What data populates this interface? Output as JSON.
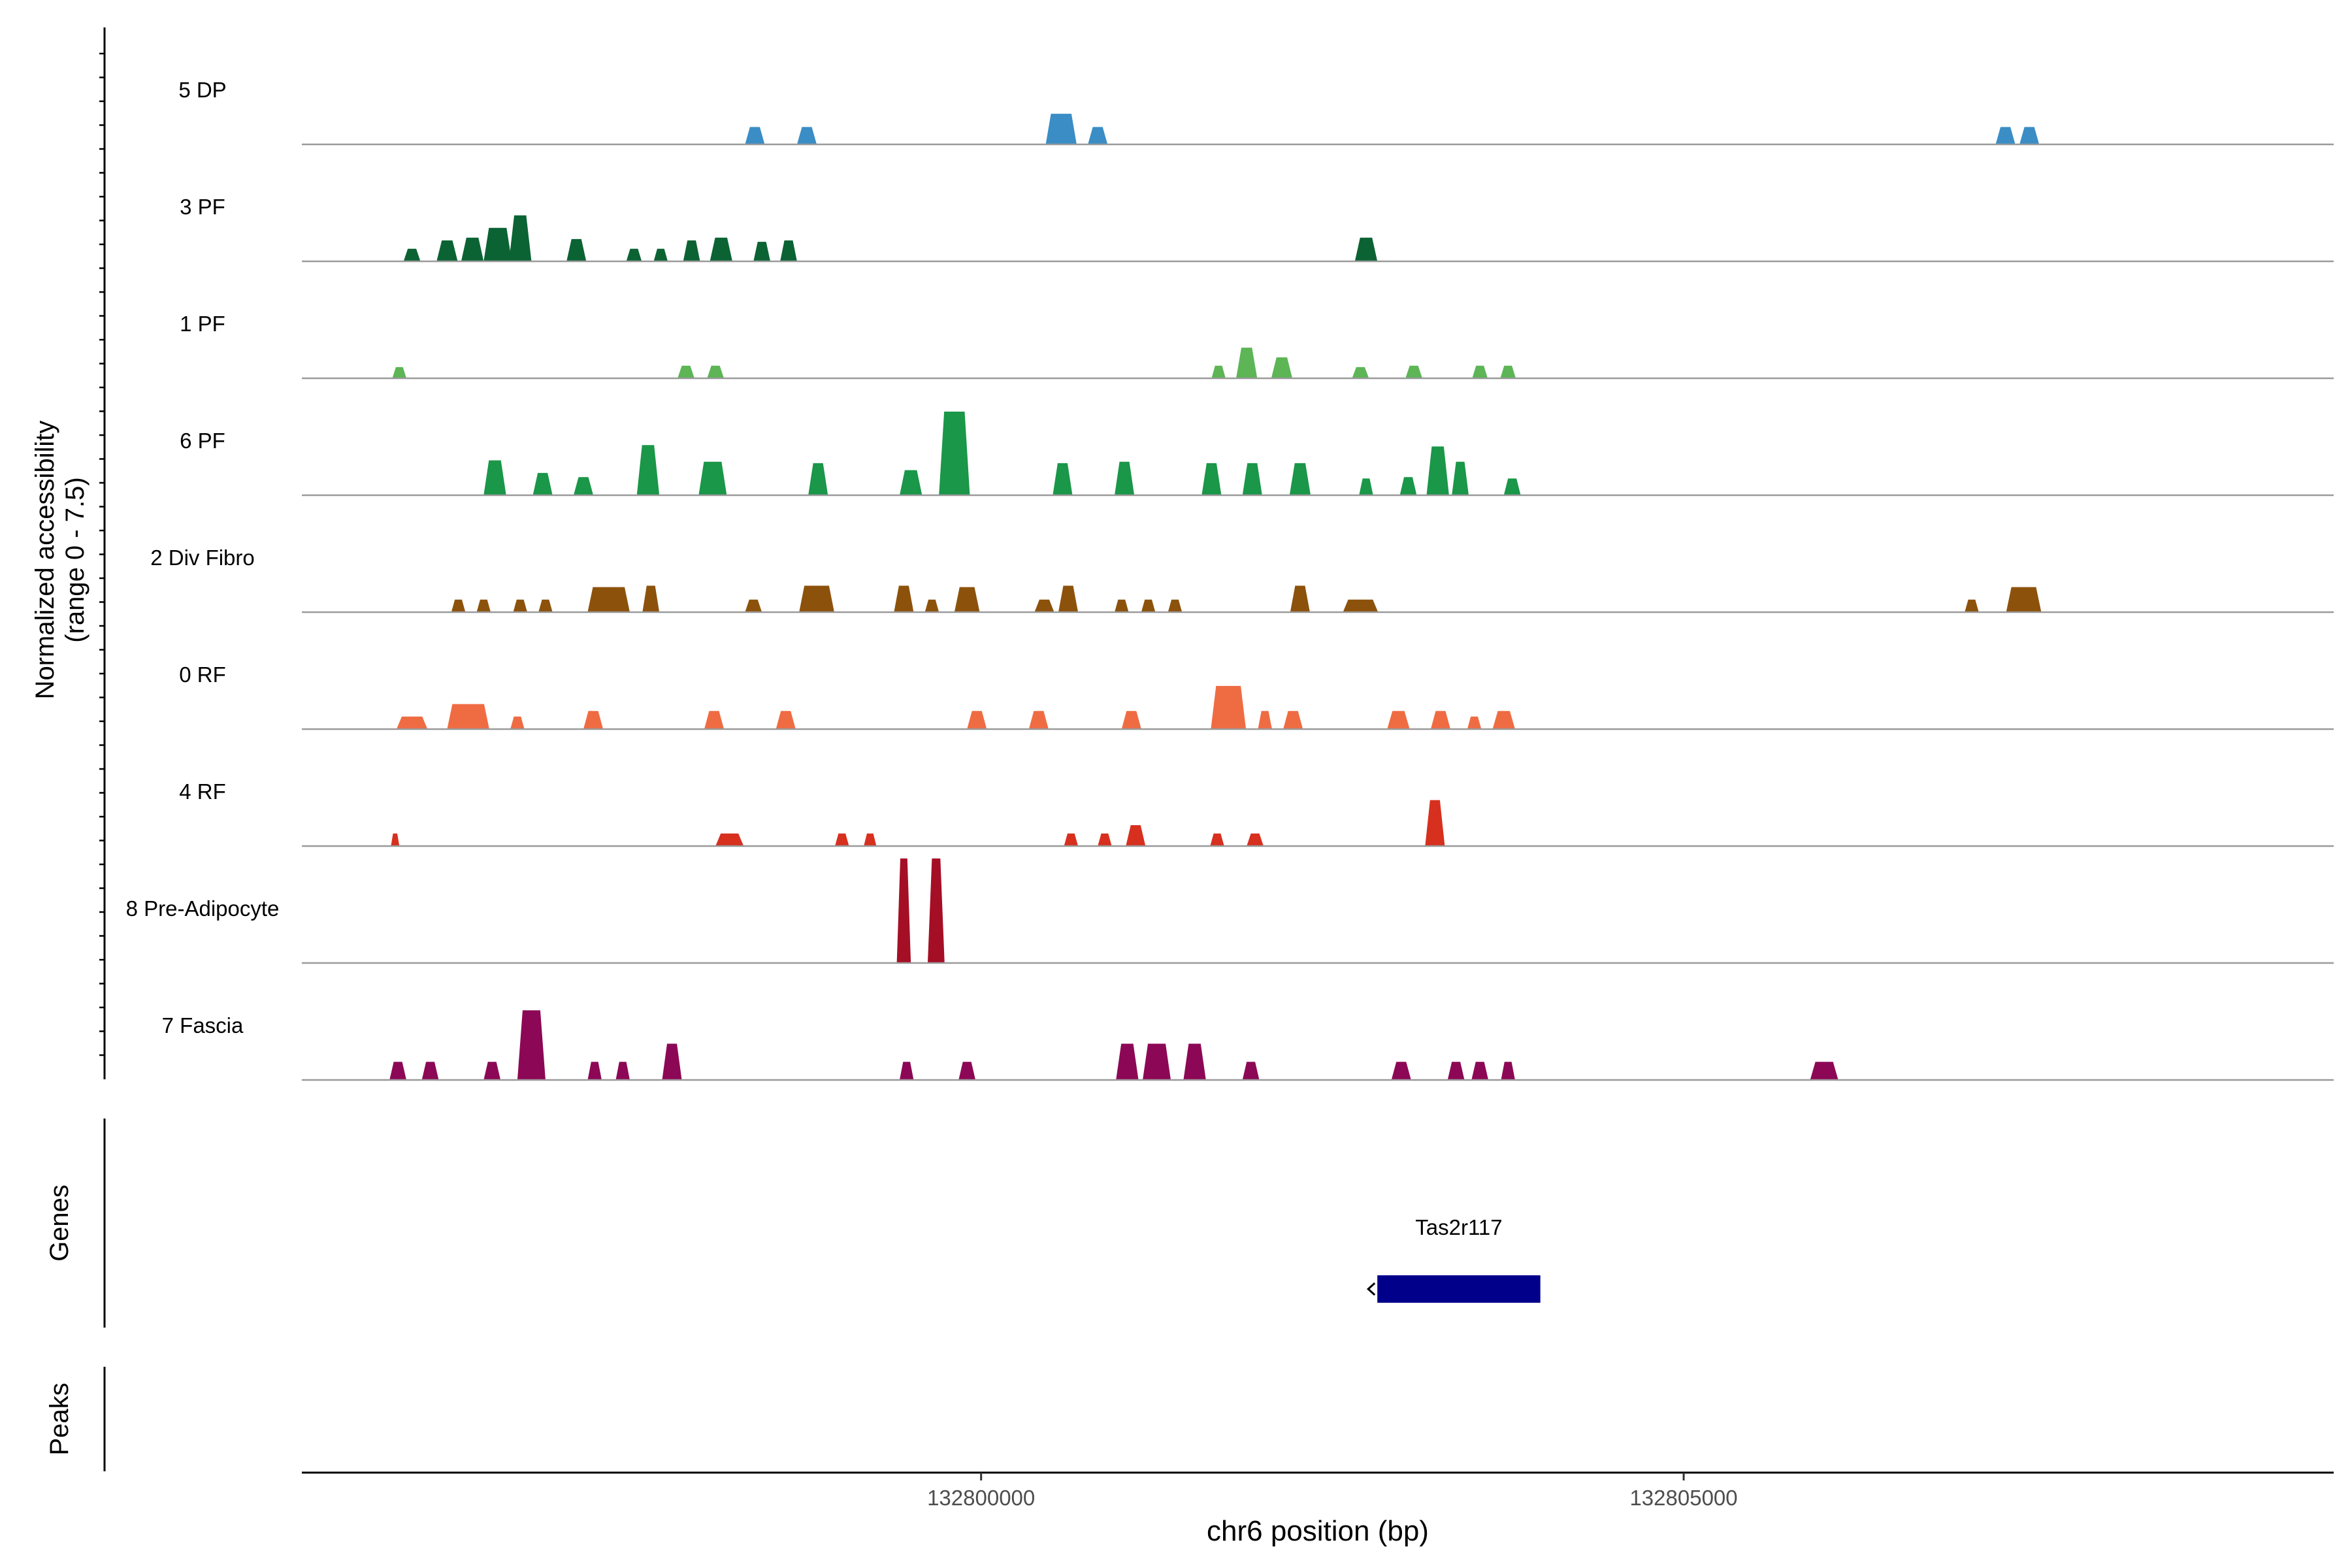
{
  "chart_data": {
    "type": "area",
    "title": "",
    "ylabel": "Normalized accessibility\n(range 0 - 7.5)",
    "xlabel": "chr6 position (bp)",
    "xlim": [
      132795166,
      132809626
    ],
    "ylim": [
      0,
      7.5
    ],
    "xticks": [
      132800000,
      132805000
    ],
    "xtick_labels": [
      "132800000",
      "132805000"
    ],
    "tracks": [
      {
        "name": "5 DP",
        "color": "#3a8dc5",
        "peaks": [
          [
            132798390,
            0.14,
            1.25
          ],
          [
            132798760,
            0.14,
            1.25
          ],
          [
            132800570,
            0.22,
            2.2
          ],
          [
            132800830,
            0.14,
            1.25
          ],
          [
            132807290,
            0.14,
            1.25
          ],
          [
            132807460,
            0.14,
            1.25
          ]
        ]
      },
      {
        "name": "3 PF",
        "color": "#0b6334",
        "peaks": [
          [
            132795950,
            0.12,
            0.9
          ],
          [
            132796200,
            0.15,
            1.5
          ],
          [
            132796380,
            0.16,
            1.7
          ],
          [
            132796560,
            0.2,
            2.4
          ],
          [
            132796720,
            0.16,
            3.3
          ],
          [
            132797120,
            0.14,
            1.6
          ],
          [
            132797530,
            0.11,
            0.9
          ],
          [
            132797720,
            0.1,
            0.9
          ],
          [
            132797940,
            0.12,
            1.5
          ],
          [
            132798150,
            0.16,
            1.7
          ],
          [
            132798440,
            0.12,
            1.4
          ],
          [
            132798630,
            0.12,
            1.5
          ],
          [
            132802740,
            0.16,
            1.7
          ]
        ]
      },
      {
        "name": "1 PF",
        "color": "#5db556",
        "peaks": [
          [
            132795860,
            0.1,
            0.8
          ],
          [
            132797900,
            0.12,
            0.9
          ],
          [
            132798110,
            0.12,
            0.9
          ],
          [
            132801690,
            0.1,
            0.9
          ],
          [
            132801890,
            0.15,
            2.2
          ],
          [
            132802140,
            0.15,
            1.5
          ],
          [
            132802700,
            0.12,
            0.8
          ],
          [
            132803080,
            0.12,
            0.9
          ],
          [
            132803550,
            0.11,
            0.9
          ],
          [
            132803750,
            0.11,
            0.9
          ]
        ]
      },
      {
        "name": "6 PF",
        "color": "#1a9748",
        "peaks": [
          [
            132796540,
            0.16,
            2.5
          ],
          [
            132796880,
            0.14,
            1.6
          ],
          [
            132797170,
            0.14,
            1.3
          ],
          [
            132797630,
            0.16,
            3.6
          ],
          [
            132798090,
            0.2,
            2.4
          ],
          [
            132798840,
            0.14,
            2.3
          ],
          [
            132799500,
            0.16,
            1.8
          ],
          [
            132799810,
            0.22,
            6.0
          ],
          [
            132800580,
            0.14,
            2.3
          ],
          [
            132801020,
            0.14,
            2.4
          ],
          [
            132801640,
            0.14,
            2.3
          ],
          [
            132801930,
            0.14,
            2.3
          ],
          [
            132802270,
            0.15,
            2.3
          ],
          [
            132802740,
            0.1,
            1.2
          ],
          [
            132803040,
            0.12,
            1.3
          ],
          [
            132803250,
            0.16,
            3.5
          ],
          [
            132803410,
            0.12,
            2.4
          ],
          [
            132803780,
            0.12,
            1.2
          ]
        ]
      },
      {
        "name": "2 Div Fibro",
        "color": "#8c520c",
        "peaks": [
          [
            132796280,
            0.1,
            0.9
          ],
          [
            132796460,
            0.1,
            0.9
          ],
          [
            132796720,
            0.1,
            0.9
          ],
          [
            132796900,
            0.1,
            0.9
          ],
          [
            132797350,
            0.3,
            1.8
          ],
          [
            132797650,
            0.12,
            1.9
          ],
          [
            132798380,
            0.12,
            0.9
          ],
          [
            132798830,
            0.25,
            1.9
          ],
          [
            132799450,
            0.14,
            1.9
          ],
          [
            132799650,
            0.1,
            0.9
          ],
          [
            132799900,
            0.18,
            1.8
          ],
          [
            132800450,
            0.14,
            0.9
          ],
          [
            132800620,
            0.14,
            1.9
          ],
          [
            132801000,
            0.1,
            0.9
          ],
          [
            132801190,
            0.1,
            0.9
          ],
          [
            132801380,
            0.1,
            0.9
          ],
          [
            132802270,
            0.14,
            1.9
          ],
          [
            132802700,
            0.25,
            0.9
          ],
          [
            132807050,
            0.1,
            0.9
          ],
          [
            132807420,
            0.25,
            1.8
          ]
        ]
      },
      {
        "name": "0 RF",
        "color": "#ef6c43",
        "peaks": [
          [
            132795950,
            0.22,
            0.9
          ],
          [
            132796350,
            0.3,
            1.8
          ],
          [
            132796700,
            0.1,
            0.9
          ],
          [
            132797240,
            0.14,
            1.3
          ],
          [
            132798100,
            0.14,
            1.3
          ],
          [
            132798610,
            0.14,
            1.3
          ],
          [
            132799970,
            0.14,
            1.3
          ],
          [
            132800410,
            0.14,
            1.3
          ],
          [
            132801070,
            0.14,
            1.3
          ],
          [
            132801760,
            0.25,
            3.1
          ],
          [
            132802020,
            0.1,
            1.3
          ],
          [
            132802220,
            0.14,
            1.3
          ],
          [
            132802970,
            0.16,
            1.3
          ],
          [
            132803270,
            0.14,
            1.3
          ],
          [
            132803510,
            0.1,
            0.9
          ],
          [
            132803720,
            0.16,
            1.3
          ]
        ]
      },
      {
        "name": "4 RF",
        "color": "#d7301f",
        "peaks": [
          [
            132795830,
            0.06,
            0.9
          ],
          [
            132798210,
            0.2,
            0.9
          ],
          [
            132799010,
            0.1,
            0.9
          ],
          [
            132799210,
            0.09,
            0.9
          ],
          [
            132800640,
            0.1,
            0.9
          ],
          [
            132800880,
            0.1,
            0.9
          ],
          [
            132801100,
            0.14,
            1.5
          ],
          [
            132801680,
            0.1,
            0.9
          ],
          [
            132801950,
            0.12,
            0.9
          ],
          [
            132803230,
            0.14,
            3.3
          ]
        ]
      },
      {
        "name": "8 Pre-Adipocyte",
        "color": "#a50f26",
        "peaks": [
          [
            132799450,
            0.1,
            7.5
          ],
          [
            132799680,
            0.12,
            7.5
          ]
        ]
      },
      {
        "name": "7 Fascia",
        "color": "#8c0856",
        "peaks": [
          [
            132795850,
            0.12,
            1.3
          ],
          [
            132796080,
            0.12,
            1.3
          ],
          [
            132796520,
            0.12,
            1.3
          ],
          [
            132796800,
            0.2,
            5.0
          ],
          [
            132797250,
            0.1,
            1.3
          ],
          [
            132797450,
            0.1,
            1.3
          ],
          [
            132797800,
            0.14,
            2.6
          ],
          [
            132799470,
            0.1,
            1.3
          ],
          [
            132799900,
            0.12,
            1.3
          ],
          [
            132801040,
            0.16,
            2.6
          ],
          [
            132801250,
            0.2,
            2.6
          ],
          [
            132801520,
            0.16,
            2.6
          ],
          [
            132801920,
            0.12,
            1.3
          ],
          [
            132802990,
            0.14,
            1.3
          ],
          [
            132803380,
            0.12,
            1.3
          ],
          [
            132803550,
            0.12,
            1.3
          ],
          [
            132803750,
            0.1,
            1.3
          ],
          [
            132806000,
            0.2,
            1.3
          ]
        ]
      }
    ],
    "genes": [
      {
        "name": "Tas2r117",
        "start": 132802820,
        "end": 132803980,
        "strand": "-",
        "color": "#00008b"
      }
    ]
  },
  "panels": {
    "genes_label": "Genes",
    "peaks_label": "Peaks"
  }
}
